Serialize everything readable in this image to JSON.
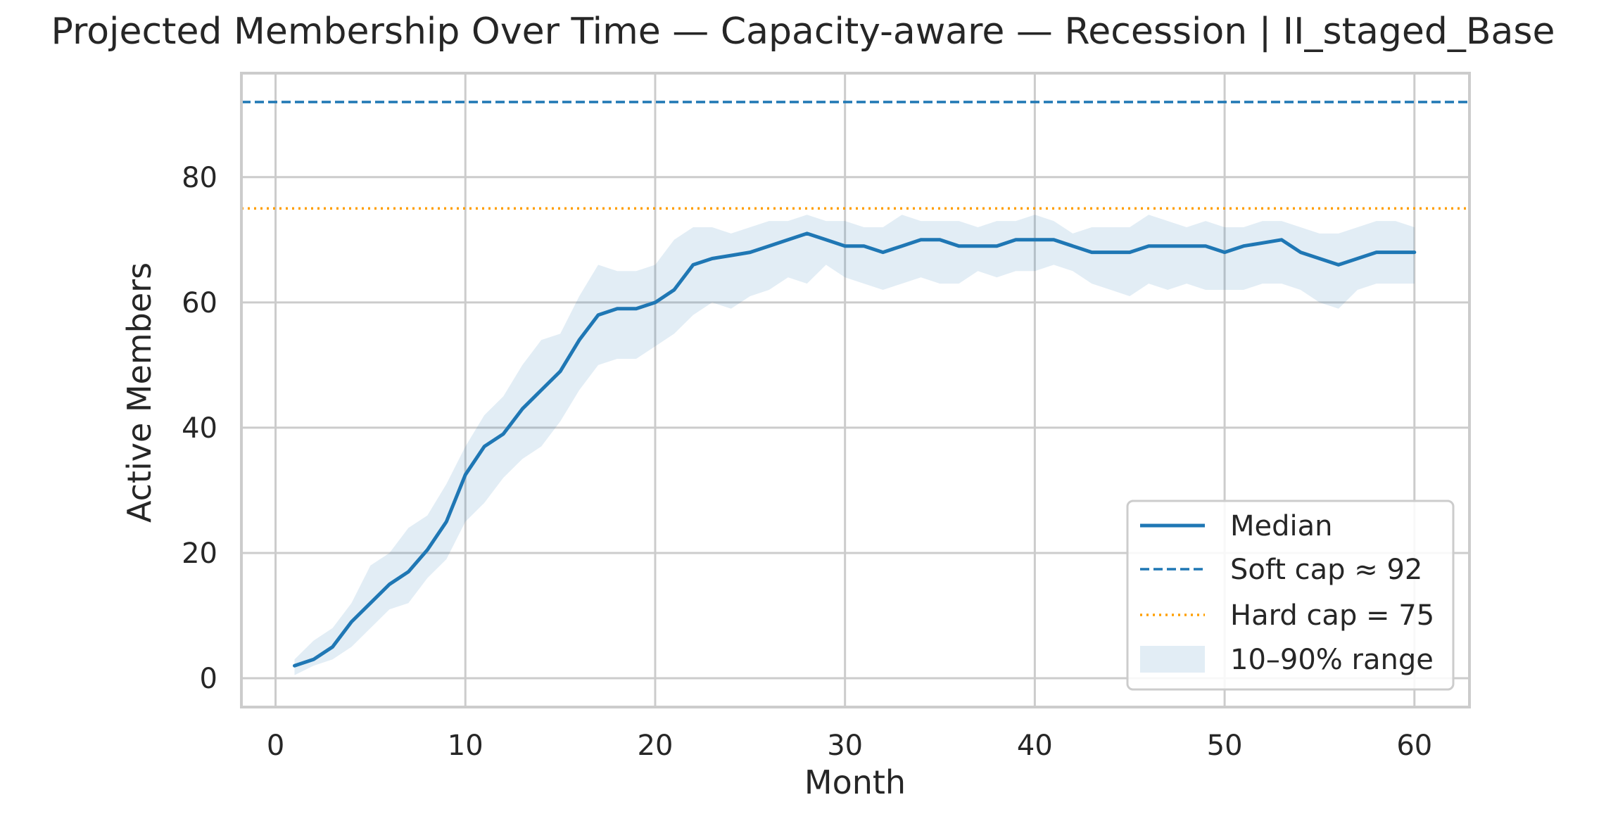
{
  "chart_data": {
    "type": "line",
    "title": "Projected Membership Over Time — Capacity-aware — Recession | II_staged_Base",
    "xlabel": "Month",
    "ylabel": "Active Members",
    "xlim": [
      -1.8,
      62.9
    ],
    "ylim": [
      -4.6,
      96.6
    ],
    "xticks": [
      0,
      10,
      20,
      30,
      40,
      50,
      60
    ],
    "yticks": [
      0,
      20,
      40,
      60,
      80
    ],
    "grid": true,
    "legend_position": "lower-right",
    "colors": {
      "median": "#1f77b4",
      "soft_cap": "#1f77b4",
      "hard_cap": "#ff9f00",
      "band": "#1f77b4",
      "grid": "#cccccc",
      "frame": "#cccccc"
    },
    "x": [
      1,
      2,
      3,
      4,
      5,
      6,
      7,
      8,
      9,
      10,
      11,
      12,
      13,
      14,
      15,
      16,
      17,
      18,
      19,
      20,
      21,
      22,
      23,
      24,
      25,
      26,
      27,
      28,
      29,
      30,
      31,
      32,
      33,
      34,
      35,
      36,
      37,
      38,
      39,
      40,
      41,
      42,
      43,
      44,
      45,
      46,
      47,
      48,
      49,
      50,
      51,
      52,
      53,
      54,
      55,
      56,
      57,
      58,
      59,
      60
    ],
    "series": [
      {
        "name": "Median",
        "style": "solid",
        "values": [
          2,
          3,
          5,
          9,
          12,
          15,
          17,
          20.5,
          25,
          32.5,
          37,
          39,
          43,
          46,
          49,
          54,
          58,
          59,
          59,
          60,
          62,
          66,
          67,
          67.5,
          68,
          69,
          70,
          71,
          70,
          69,
          69,
          68,
          69,
          70,
          70,
          69,
          69,
          69,
          70,
          70,
          70,
          69,
          68,
          68,
          68,
          69,
          69,
          69,
          69,
          68,
          69,
          69.5,
          70,
          68,
          67,
          66,
          67,
          68,
          68,
          68
        ]
      },
      {
        "name": "10–90% range",
        "style": "band",
        "lower": [
          0.5,
          2,
          3,
          5,
          8,
          11,
          12,
          16,
          19,
          25,
          28,
          32,
          35,
          37,
          41,
          46,
          50,
          51,
          51,
          53,
          55,
          58,
          60,
          59,
          61,
          62,
          64,
          63,
          66,
          64,
          63,
          62,
          63,
          64,
          63,
          63,
          65,
          64,
          65,
          65,
          66,
          65,
          63,
          62,
          61,
          63,
          62,
          63,
          62,
          62,
          62,
          63,
          63,
          62,
          60,
          59,
          62,
          63,
          63,
          63
        ],
        "upper": [
          3,
          6,
          8,
          12,
          18,
          20,
          24,
          26,
          31,
          37,
          42,
          45,
          50,
          54,
          55,
          61,
          66,
          65,
          65,
          66,
          70,
          72,
          72,
          71,
          72,
          73,
          73,
          74,
          73,
          73,
          72,
          72,
          74,
          73,
          73,
          73,
          72,
          73,
          73,
          74,
          73,
          71,
          72,
          72,
          72,
          74,
          73,
          72,
          73,
          72,
          72,
          73,
          73,
          72,
          71,
          71,
          72,
          73,
          73,
          72
        ]
      },
      {
        "name": "Soft cap ≈ 92",
        "style": "dashed",
        "value": 92
      },
      {
        "name": "Hard cap = 75",
        "style": "dotted",
        "value": 75
      }
    ]
  }
}
